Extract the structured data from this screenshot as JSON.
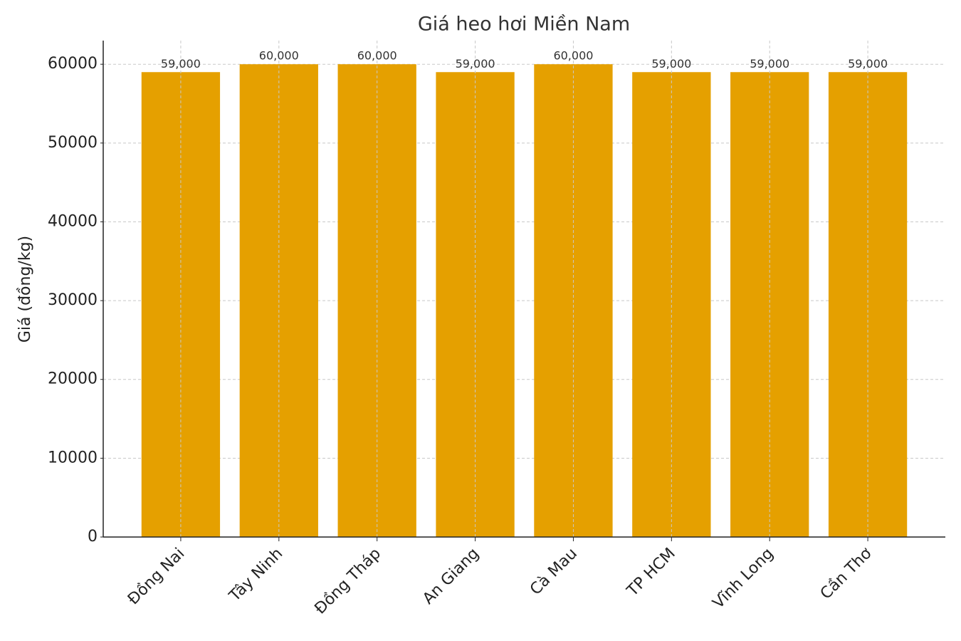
{
  "chart_data": {
    "type": "bar",
    "title": "Giá heo hơi Miền Nam",
    "ylabel": "Giá (đồng/kg)",
    "categories": [
      "Đồng Nai",
      "Tây Ninh",
      "Đồng Tháp",
      "An Giang",
      "Cà Mau",
      "TP HCM",
      "Vĩnh Long",
      "Cần Thơ"
    ],
    "values": [
      59000,
      60000,
      60000,
      59000,
      60000,
      59000,
      59000,
      59000
    ],
    "value_labels": [
      "59,000",
      "60,000",
      "60,000",
      "59,000",
      "60,000",
      "59,000",
      "59,000",
      "59,000"
    ],
    "color": "#e5a000",
    "ylim": [
      0,
      63000
    ],
    "yticks": [
      0,
      10000,
      20000,
      30000,
      40000,
      50000,
      60000
    ],
    "grid": true
  }
}
